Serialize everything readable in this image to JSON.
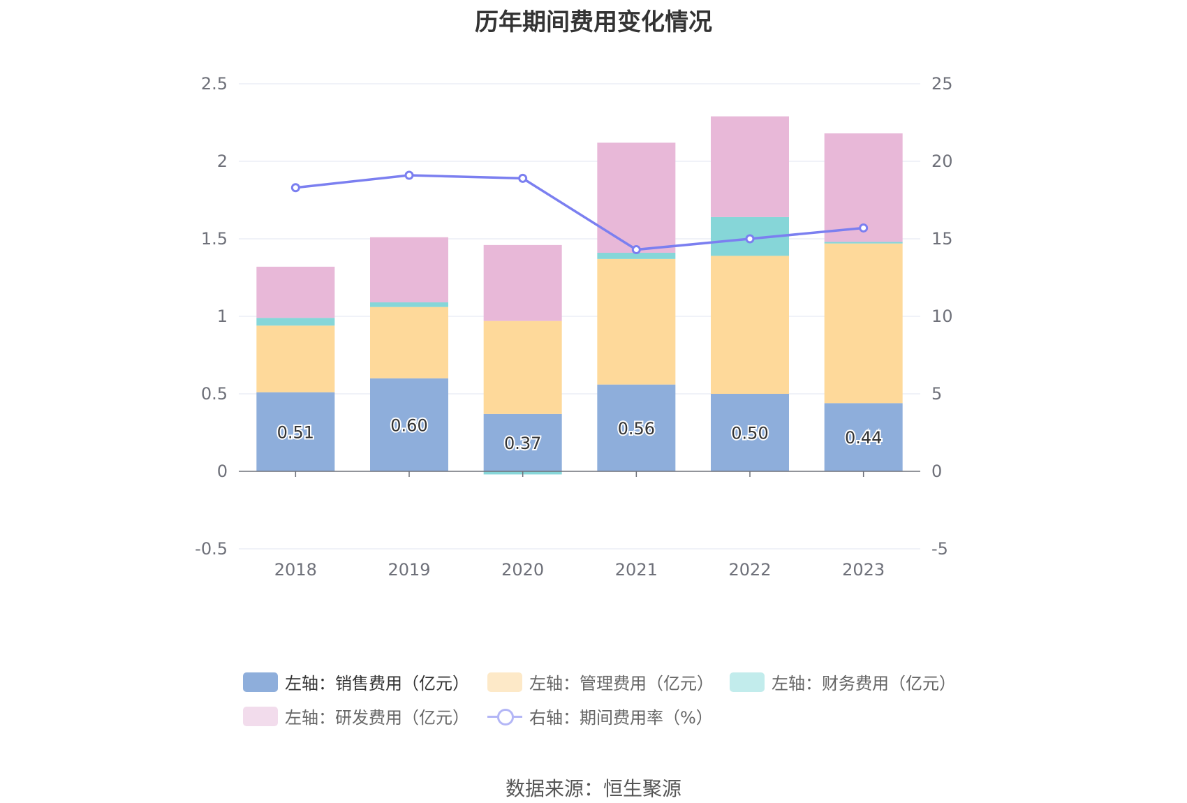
{
  "chart_data": {
    "type": "bar",
    "title": "历年期间费用变化情况",
    "categories": [
      "2018",
      "2019",
      "2020",
      "2021",
      "2022",
      "2023"
    ],
    "y_left": {
      "ticks": [
        "2.5",
        "2",
        "1.5",
        "1",
        "0.5",
        "0",
        "-0.5"
      ],
      "ylim": [
        -0.5,
        2.5
      ]
    },
    "y_right": {
      "ticks": [
        "25",
        "20",
        "15",
        "10",
        "5",
        "0",
        "-5"
      ],
      "ylim": [
        -5,
        25
      ]
    },
    "series": [
      {
        "name": "左轴：销售费用（亿元）",
        "stack": true,
        "axis": "left",
        "color": "#8eaedb",
        "values": [
          0.51,
          0.6,
          0.37,
          0.56,
          0.5,
          0.44
        ],
        "labels": [
          "0.51",
          "0.60",
          "0.37",
          "0.56",
          "0.50",
          "0.44"
        ]
      },
      {
        "name": "左轴：管理费用（亿元）",
        "stack": true,
        "axis": "left",
        "color": "#fed99a",
        "values": [
          0.43,
          0.46,
          0.6,
          0.81,
          0.89,
          1.03
        ]
      },
      {
        "name": "左轴：财务费用（亿元）",
        "stack": true,
        "axis": "left",
        "color": "#86d6d8",
        "values": [
          0.05,
          0.03,
          -0.02,
          0.04,
          0.25,
          0.01
        ]
      },
      {
        "name": "左轴：研发费用（亿元）",
        "stack": true,
        "axis": "left",
        "color": "#e8b8d8",
        "values": [
          0.33,
          0.42,
          0.49,
          0.71,
          0.65,
          0.7
        ]
      },
      {
        "name": "右轴：期间费用率（%）",
        "type": "line",
        "axis": "right",
        "color": "#7b7ff0",
        "values": [
          18.3,
          19.1,
          18.9,
          14.3,
          15.0,
          15.7
        ]
      }
    ],
    "grid": true,
    "legend_position": "bottom"
  },
  "source": "数据来源：恒生聚源"
}
